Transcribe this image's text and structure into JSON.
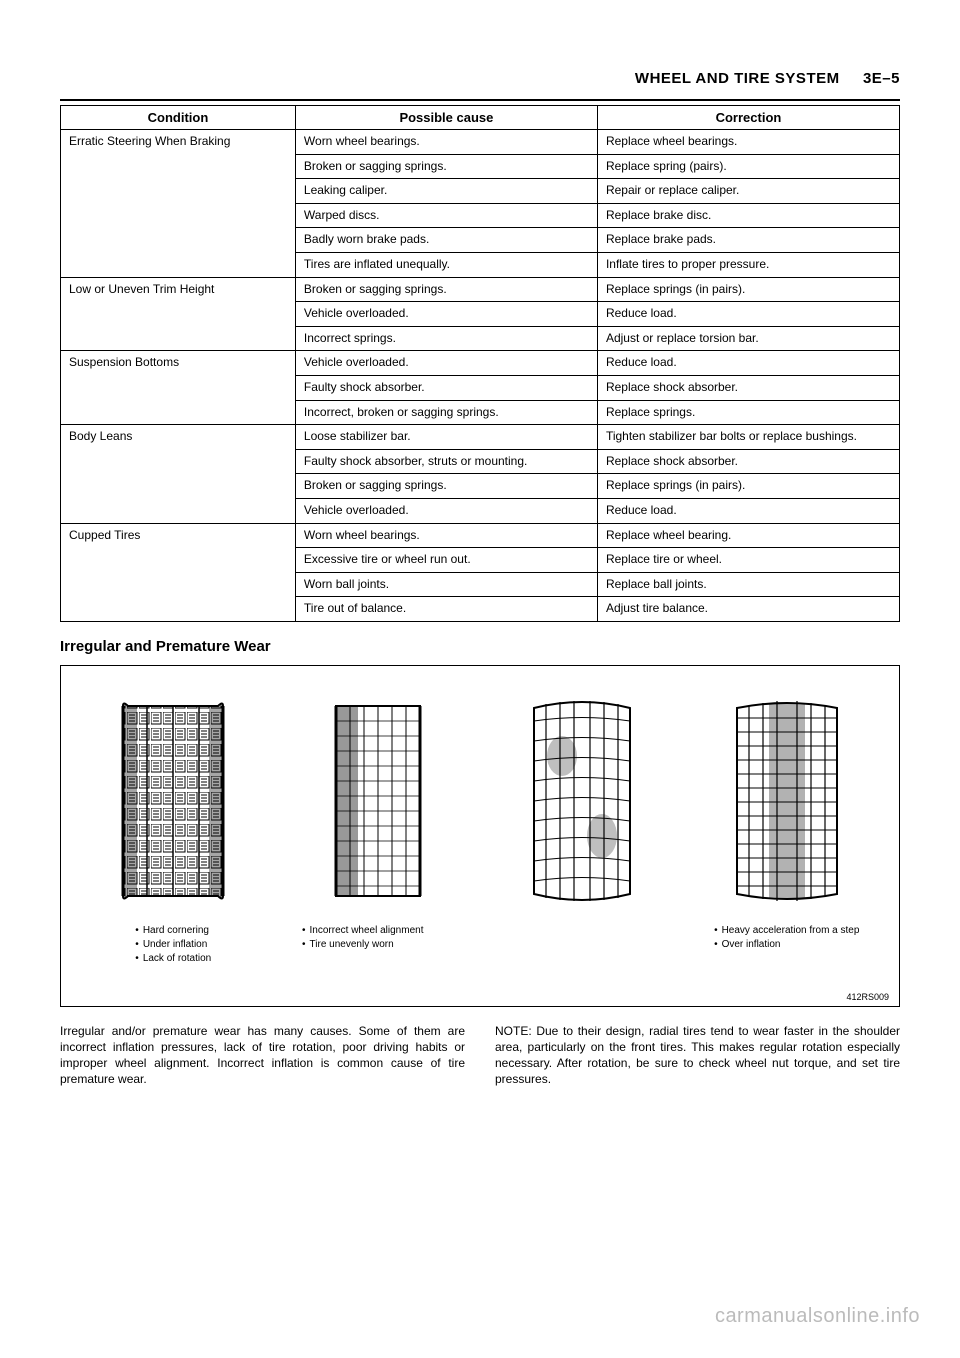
{
  "header": {
    "title": "WHEEL AND TIRE SYSTEM",
    "page": "3E–5"
  },
  "table": {
    "columns": [
      "Condition",
      "Possible cause",
      "Correction"
    ],
    "groups": [
      {
        "condition": "Erratic Steering When Braking",
        "rows": [
          {
            "cause": "Worn wheel bearings.",
            "correction": "Replace wheel bearings."
          },
          {
            "cause": "Broken or sagging springs.",
            "correction": "Replace spring (pairs)."
          },
          {
            "cause": "Leaking caliper.",
            "correction": "Repair or replace caliper."
          },
          {
            "cause": "Warped discs.",
            "correction": "Replace brake disc."
          },
          {
            "cause": "Badly worn brake pads.",
            "correction": "Replace brake pads."
          },
          {
            "cause": "Tires are inflated unequally.",
            "correction": "Inflate tires to proper pressure."
          }
        ]
      },
      {
        "condition": "Low or Uneven Trim Height",
        "rows": [
          {
            "cause": "Broken or sagging springs.",
            "correction": "Replace springs (in pairs)."
          },
          {
            "cause": "Vehicle overloaded.",
            "correction": "Reduce load."
          },
          {
            "cause": "Incorrect springs.",
            "correction": "Adjust or replace torsion bar."
          }
        ]
      },
      {
        "condition": "Suspension Bottoms",
        "rows": [
          {
            "cause": "Vehicle overloaded.",
            "correction": "Reduce load."
          },
          {
            "cause": "Faulty shock absorber.",
            "correction": "Replace shock absorber."
          },
          {
            "cause": "Incorrect, broken or sagging springs.",
            "correction": "Replace springs."
          }
        ]
      },
      {
        "condition": "Body Leans",
        "rows": [
          {
            "cause": "Loose stabilizer bar.",
            "correction": "Tighten stabilizer bar bolts or replace bushings."
          },
          {
            "cause": "Faulty shock absorber, struts or mounting.",
            "correction": "Replace shock absorber."
          },
          {
            "cause": "Broken or sagging springs.",
            "correction": "Replace springs (in pairs)."
          },
          {
            "cause": "Vehicle overloaded.",
            "correction": "Reduce load."
          }
        ]
      },
      {
        "condition": "Cupped Tires",
        "rows": [
          {
            "cause": "Worn wheel bearings.",
            "correction": "Replace wheel bearing."
          },
          {
            "cause": "Excessive tire or wheel run out.",
            "correction": "Replace tire or wheel."
          },
          {
            "cause": "Worn ball joints.",
            "correction": "Replace ball joints."
          },
          {
            "cause": "Tire out of balance.",
            "correction": "Adjust tire balance."
          }
        ]
      }
    ]
  },
  "section_title": "Irregular and Premature Wear",
  "tire_figure": {
    "label": "412RS009",
    "tires": [
      {
        "caption_lines": [
          "Hard cornering",
          "Under inflation",
          "Lack of rotation"
        ]
      },
      {
        "caption_lines": [
          "Incorrect wheel alignment",
          "Tire unevenly worn"
        ],
        "merged": true
      },
      {
        "caption_lines": []
      },
      {
        "caption_lines": [
          "Heavy acceleration from a step",
          "Over inflation"
        ]
      }
    ]
  },
  "body": {
    "left": "Irregular and/or premature wear has many causes. Some of them are incorrect inflation pressures, lack of tire rotation, poor driving habits or improper wheel alignment. Incorrect inflation is common cause of tire premature wear.",
    "right": "NOTE: Due to their design, radial tires tend to wear faster in the shoulder area, particularly on the front tires.  This makes regular rotation especially necessary.  After rotation, be sure to check wheel nut torque, and set tire pressures."
  },
  "watermark": "carmanualsonline.info"
}
